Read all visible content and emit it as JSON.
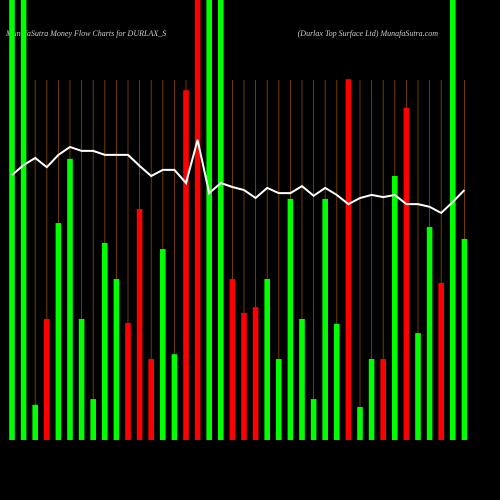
{
  "chart_data": {
    "type": "bar",
    "title": "MunafaSutra  Money Flow  Charts for DURLAX_S",
    "subtitle": "(Durlax Top Surface   Ltd) MunafaSutra.com",
    "categories": [
      null,
      null,
      null,
      null,
      null,
      null,
      null,
      null,
      null,
      null,
      null,
      null,
      null,
      null,
      null,
      null,
      null,
      null,
      null,
      null,
      null,
      null,
      null,
      null,
      null,
      null,
      null,
      null,
      null,
      null,
      null,
      null,
      null,
      null,
      null,
      null,
      null,
      null,
      null,
      null
    ],
    "values": [
      100,
      100,
      8,
      27.5,
      49.3,
      63.9,
      27.5,
      9.3,
      44.8,
      36.6,
      26.6,
      52.5,
      18.4,
      43.4,
      19.5,
      79.5,
      100,
      100,
      100,
      36.6,
      28.9,
      30.2,
      36.6,
      18.4,
      54.8,
      27.5,
      9.3,
      54.8,
      26.4,
      82,
      7.5,
      18.4,
      18.4,
      60,
      75.5,
      24.3,
      48.4,
      35.7,
      100,
      45.7
    ],
    "bar_colors": [
      "#00ff00",
      "#00ff00",
      "#00ff00",
      "#ff0000",
      "#00ff00",
      "#00ff00",
      "#00ff00",
      "#00ff00",
      "#00ff00",
      "#00ff00",
      "#ff0000",
      "#ff0000",
      "#ff0000",
      "#00ff00",
      "#00ff00",
      "#ff0000",
      "#ff0000",
      "#00ff00",
      "#00ff00",
      "#ff0000",
      "#ff0000",
      "#ff0000",
      "#00ff00",
      "#00ff00",
      "#00ff00",
      "#00ff00",
      "#00ff00",
      "#00ff00",
      "#00ff00",
      "#ff0000",
      "#00ff00",
      "#00ff00",
      "#ff0000",
      "#00ff00",
      "#ff0000",
      "#00ff00",
      "#00ff00",
      "#ff0000",
      "#00ff00",
      "#00ff00"
    ],
    "line": {
      "color": "#ffffff",
      "values": [
        60.2,
        62.5,
        64.1,
        62.0,
        64.8,
        66.6,
        65.7,
        65.7,
        64.8,
        64.8,
        64.8,
        62.3,
        60.0,
        61.4,
        61.4,
        58.4,
        68.2,
        56.1,
        58.4,
        57.5,
        56.8,
        55.0,
        57.3,
        56.1,
        56.1,
        57.7,
        55.5,
        57.3,
        55.7,
        53.6,
        55.0,
        55.7,
        55.2,
        55.7,
        53.6,
        53.6,
        53.0,
        51.6,
        54.1,
        56.8
      ]
    },
    "ylim": [
      0,
      100
    ],
    "grid_color": "#8a4a00"
  }
}
